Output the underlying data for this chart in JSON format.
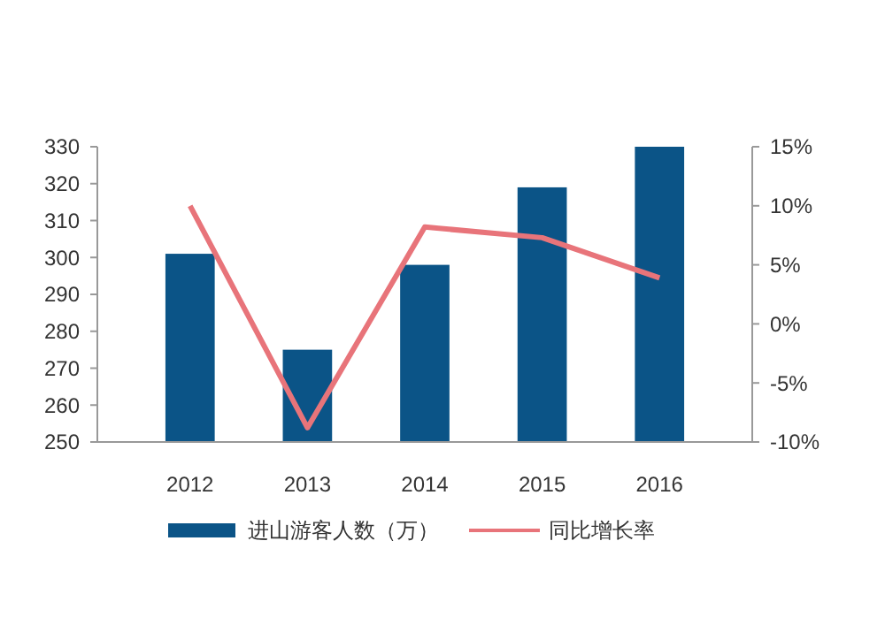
{
  "chart_data": {
    "type": "bar",
    "categories": [
      "2012",
      "2013",
      "2014",
      "2015",
      "2016"
    ],
    "series": [
      {
        "name": "进山游客人数（万）",
        "color": "#0b5487",
        "values": [
          301,
          275,
          298,
          319,
          330
        ]
      },
      {
        "name": "同比增长率",
        "type": "line",
        "axis": "y2",
        "color": "#e8747a",
        "values": [
          10,
          -8.8,
          8.2,
          7.3,
          3.9
        ]
      }
    ],
    "ylim": [
      250,
      330
    ],
    "yticks": [
      250,
      260,
      270,
      280,
      290,
      300,
      310,
      320,
      330
    ],
    "y2lim": [
      -10,
      15
    ],
    "y2ticks": [
      {
        "value": -10,
        "label": "-10%"
      },
      {
        "value": -5,
        "label": "-5%"
      },
      {
        "value": 0,
        "label": "0%"
      },
      {
        "value": 5,
        "label": "5%"
      },
      {
        "value": 10,
        "label": "10%"
      },
      {
        "value": 15,
        "label": "15%"
      }
    ],
    "legend": "bottom",
    "grid": false
  }
}
